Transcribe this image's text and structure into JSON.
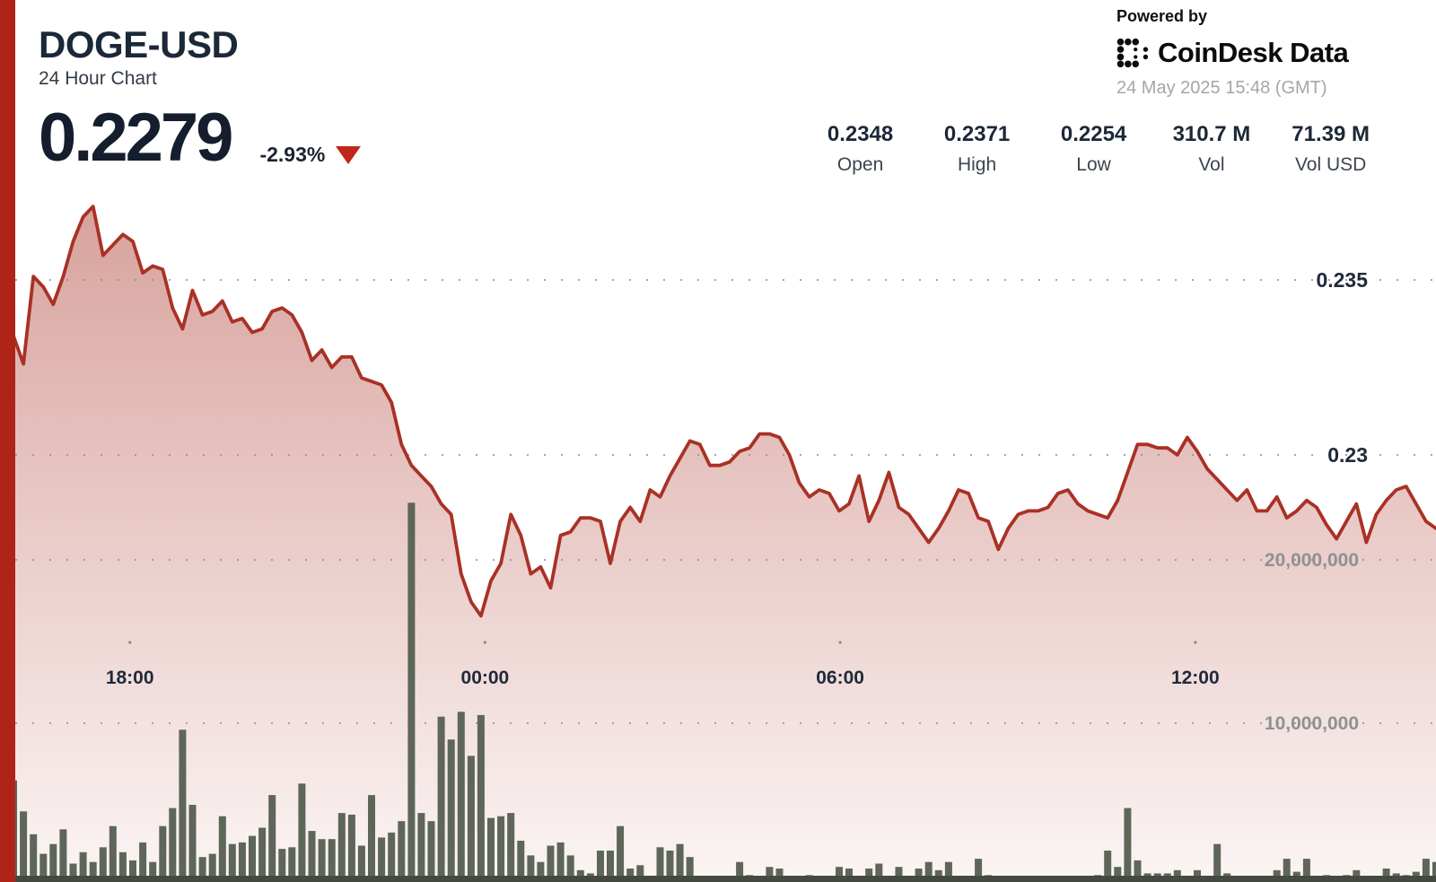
{
  "header": {
    "symbol": "DOGE-USD",
    "subtitle": "24 Hour Chart",
    "price": "0.2279",
    "change": "-2.93%",
    "direction_icon": "down-triangle"
  },
  "branding": {
    "powered_by": "Powered by",
    "brand": "CoinDesk Data",
    "timestamp": "24 May 2025 15:48 (GMT)"
  },
  "stats": {
    "items": [
      {
        "value": "0.2348",
        "label": "Open"
      },
      {
        "value": "0.2371",
        "label": "High"
      },
      {
        "value": "0.2254",
        "label": "Low"
      },
      {
        "value": "310.7 M",
        "label": "Vol"
      },
      {
        "value": "71.39 M",
        "label": "Vol USD"
      }
    ]
  },
  "colors": {
    "accent_red": "#ae2518",
    "line_red": "#a93125",
    "area_red": "#a93125",
    "volume_bar": "#5e665a",
    "volume_baseline": "#454a41",
    "axis_navy": "#1f2a3a",
    "axis_gray": "#8f9091",
    "tick_dot": "#8a8a8a"
  },
  "chart_data": {
    "type": "area",
    "title": "DOGE-USD 24 Hour Chart",
    "subtitle": "price line with volume bars, 10-minute intervals over 24 hours",
    "time_start": "15:50",
    "interval_minutes": 10,
    "x_tick_labels": [
      "18:00",
      "00:00",
      "06:00",
      "12:00"
    ],
    "x_tick_indices": [
      11.7,
      47.4,
      83.1,
      118.8
    ],
    "price_axis": {
      "side": "right",
      "ticks": [
        0.235,
        0.23
      ],
      "range": [
        0.2254,
        0.2371
      ]
    },
    "volume_axis": {
      "side": "right",
      "ticks": [
        20000000,
        10000000
      ],
      "unit_of_values": "millions"
    },
    "grid": "dotted",
    "series": [
      {
        "name": "price",
        "type": "line-area",
        "color": "#a93125",
        "values": [
          0.2334,
          0.2326,
          0.2351,
          0.2348,
          0.2343,
          0.2351,
          0.2361,
          0.2368,
          0.2371,
          0.2357,
          0.236,
          0.2363,
          0.2361,
          0.2352,
          0.2354,
          0.2353,
          0.2342,
          0.2336,
          0.2347,
          0.234,
          0.2341,
          0.2344,
          0.2338,
          0.2339,
          0.2335,
          0.2336,
          0.2341,
          0.2342,
          0.234,
          0.2335,
          0.2327,
          0.233,
          0.2325,
          0.2328,
          0.2328,
          0.2322,
          0.2321,
          0.232,
          0.2315,
          0.2303,
          0.2297,
          0.2294,
          0.2291,
          0.2286,
          0.2283,
          0.2266,
          0.2258,
          0.2254,
          0.2264,
          0.2269,
          0.2283,
          0.2277,
          0.2266,
          0.2268,
          0.2262,
          0.2277,
          0.2278,
          0.2282,
          0.2282,
          0.2281,
          0.2269,
          0.2281,
          0.2285,
          0.2281,
          0.229,
          0.2288,
          0.2294,
          0.2299,
          0.2304,
          0.2303,
          0.2297,
          0.2297,
          0.2298,
          0.2301,
          0.2302,
          0.2306,
          0.2306,
          0.2305,
          0.23,
          0.2292,
          0.2288,
          0.229,
          0.2289,
          0.2284,
          0.2286,
          0.2294,
          0.2281,
          0.2287,
          0.2295,
          0.2285,
          0.2283,
          0.2279,
          0.2275,
          0.2279,
          0.2284,
          0.229,
          0.2289,
          0.2282,
          0.2281,
          0.2273,
          0.2279,
          0.2283,
          0.2284,
          0.2284,
          0.2285,
          0.2289,
          0.229,
          0.2286,
          0.2284,
          0.2283,
          0.2282,
          0.2287,
          0.2295,
          0.2303,
          0.2303,
          0.2302,
          0.2302,
          0.23,
          0.2305,
          0.2301,
          0.2296,
          0.2293,
          0.229,
          0.2287,
          0.229,
          0.2284,
          0.2284,
          0.2288,
          0.2282,
          0.2284,
          0.2287,
          0.2285,
          0.228,
          0.2276,
          0.2281,
          0.2286,
          0.2275,
          0.2283,
          0.2287,
          0.229,
          0.2291,
          0.2286,
          0.2281,
          0.2279
        ]
      },
      {
        "name": "volume",
        "type": "bar",
        "color": "#5e665a",
        "unit": "millions",
        "values": [
          6.5,
          4.6,
          3.2,
          2.0,
          2.6,
          3.5,
          1.4,
          2.1,
          1.5,
          2.4,
          3.7,
          2.1,
          1.6,
          2.7,
          1.5,
          3.7,
          4.8,
          9.6,
          5.0,
          1.8,
          2.0,
          4.3,
          2.6,
          2.7,
          3.1,
          3.6,
          5.6,
          2.3,
          2.4,
          6.3,
          3.4,
          2.9,
          2.9,
          4.5,
          4.4,
          2.5,
          5.6,
          3.0,
          3.3,
          4.0,
          23.5,
          4.5,
          4.0,
          10.4,
          9.0,
          10.7,
          8.0,
          10.5,
          4.2,
          4.3,
          4.5,
          2.8,
          1.9,
          1.5,
          2.5,
          2.7,
          1.9,
          1.0,
          0.8,
          2.2,
          2.2,
          3.7,
          1.1,
          1.3,
          0.4,
          2.4,
          2.2,
          2.6,
          1.8,
          0.3,
          0.6,
          0.5,
          0.6,
          1.5,
          0.7,
          0.4,
          1.2,
          1.1,
          0.3,
          0.2,
          0.7,
          0.4,
          0.6,
          1.2,
          1.1,
          0.6,
          1.1,
          1.4,
          0.3,
          1.2,
          0.4,
          1.1,
          1.5,
          1.0,
          1.5,
          0.3,
          0.4,
          1.7,
          0.7,
          0.5,
          0.4,
          0.3,
          0.3,
          0.4,
          0.5,
          0.4,
          0.5,
          0.4,
          0.5,
          0.7,
          2.2,
          1.2,
          4.8,
          1.6,
          0.8,
          0.8,
          0.8,
          1.0,
          0.5,
          1.0,
          0.6,
          2.6,
          0.8,
          0.4,
          0.3,
          0.6,
          0.5,
          1.0,
          1.7,
          0.9,
          1.7,
          0.4,
          0.7,
          0.5,
          0.7,
          1.0,
          0.6,
          0.6,
          1.1,
          0.8,
          0.7,
          0.9,
          1.7,
          1.5
        ]
      }
    ]
  }
}
